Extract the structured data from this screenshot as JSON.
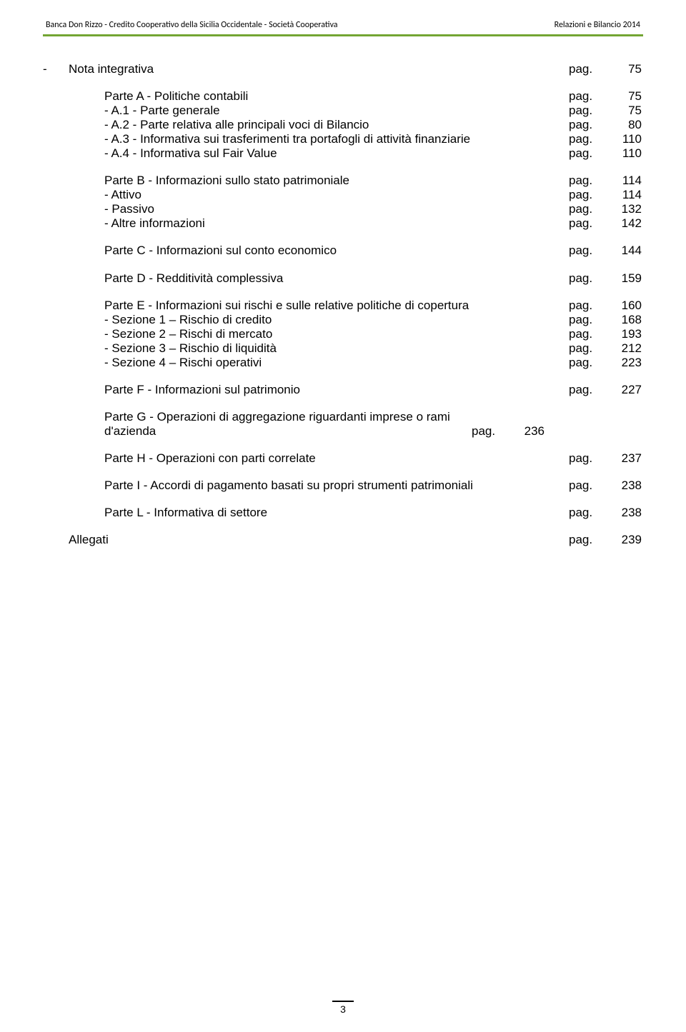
{
  "header": {
    "left": "Banca Don Rizzo - Credito Cooperativo della Sicilia Occidentale - Società Cooperativa",
    "right": "Relazioni e Bilancio 2014"
  },
  "pag_label": "pag.",
  "footer_page": "3",
  "entries": [
    {
      "kind": "row",
      "bulleted": true,
      "indent": 0,
      "text": "Nota integrativa",
      "page": "75"
    },
    {
      "kind": "gap",
      "size": "s"
    },
    {
      "kind": "row",
      "bulleted": false,
      "indent": 1,
      "text": "Parte A - Politiche contabili",
      "page": "75"
    },
    {
      "kind": "row",
      "bulleted": false,
      "indent": 1,
      "text": "- A.1 - Parte generale",
      "page": "75"
    },
    {
      "kind": "row",
      "bulleted": false,
      "indent": 1,
      "text": "- A.2 - Parte relativa alle principali voci di Bilancio",
      "page": "80"
    },
    {
      "kind": "row",
      "bulleted": false,
      "indent": 1,
      "text": "- A.3 - Informativa sui trasferimenti tra portafogli di attività finanziarie",
      "page": "110"
    },
    {
      "kind": "row",
      "bulleted": false,
      "indent": 1,
      "text": "- A.4 - Informativa sul Fair Value",
      "page": "110"
    },
    {
      "kind": "gap",
      "size": "s"
    },
    {
      "kind": "row",
      "bulleted": false,
      "indent": 1,
      "text": "Parte B - Informazioni sullo stato patrimoniale",
      "page": "114"
    },
    {
      "kind": "row",
      "bulleted": false,
      "indent": 1,
      "text": "- Attivo",
      "page": "114"
    },
    {
      "kind": "row",
      "bulleted": false,
      "indent": 1,
      "text": "- Passivo",
      "page": "132"
    },
    {
      "kind": "row",
      "bulleted": false,
      "indent": 1,
      "text": "- Altre informazioni",
      "page": "142"
    },
    {
      "kind": "gap",
      "size": "s"
    },
    {
      "kind": "row",
      "bulleted": false,
      "indent": 1,
      "text": "Parte C - Informazioni sul conto economico",
      "page": "144"
    },
    {
      "kind": "gap",
      "size": "s"
    },
    {
      "kind": "row",
      "bulleted": false,
      "indent": 1,
      "text": "Parte D - Redditività complessiva",
      "page": "159"
    },
    {
      "kind": "gap",
      "size": "s"
    },
    {
      "kind": "row",
      "bulleted": false,
      "indent": 1,
      "text": "Parte E - Informazioni sui rischi e sulle relative politiche di copertura",
      "page": "160"
    },
    {
      "kind": "row",
      "bulleted": false,
      "indent": 1,
      "text": "- Sezione 1 – Rischio di credito",
      "page": "168"
    },
    {
      "kind": "row",
      "bulleted": false,
      "indent": 1,
      "text": "- Sezione 2 – Rischi di mercato",
      "page": "193"
    },
    {
      "kind": "row",
      "bulleted": false,
      "indent": 1,
      "text": "- Sezione 3 – Rischio di liquidità",
      "page": "212"
    },
    {
      "kind": "row",
      "bulleted": false,
      "indent": 1,
      "text": "- Sezione 4 – Rischi operativi",
      "page": "223"
    },
    {
      "kind": "gap",
      "size": "s"
    },
    {
      "kind": "row",
      "bulleted": false,
      "indent": 1,
      "text": "Parte F - Informazioni sul patrimonio",
      "page": "227"
    },
    {
      "kind": "gap",
      "size": "s"
    },
    {
      "kind": "row",
      "bulleted": false,
      "indent": 1,
      "text": "Parte G - Operazioni di aggregazione riguardanti imprese o rami d'azienda",
      "page": "236",
      "wrap": true
    },
    {
      "kind": "gap",
      "size": "s"
    },
    {
      "kind": "row",
      "bulleted": false,
      "indent": 1,
      "text": "Parte H - Operazioni con parti correlate",
      "page": "237"
    },
    {
      "kind": "gap",
      "size": "s"
    },
    {
      "kind": "row",
      "bulleted": false,
      "indent": 1,
      "text": "Parte I - Accordi di pagamento basati su propri strumenti patrimoniali",
      "page": "238"
    },
    {
      "kind": "gap",
      "size": "s"
    },
    {
      "kind": "row",
      "bulleted": false,
      "indent": 1,
      "text": "Parte L - Informativa di settore",
      "page": "238"
    },
    {
      "kind": "gap",
      "size": "s"
    },
    {
      "kind": "row",
      "bulleted": false,
      "indent": 0,
      "text": "Allegati",
      "page": "239",
      "pad": true
    }
  ]
}
